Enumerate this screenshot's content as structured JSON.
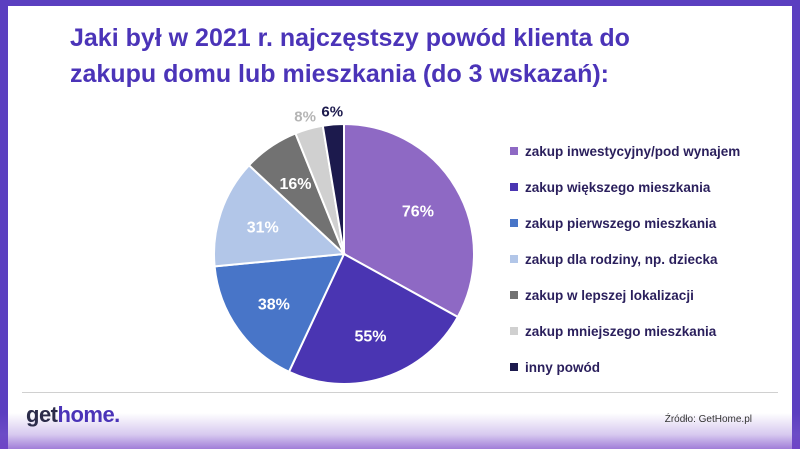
{
  "colors": {
    "accent": "#4b34b8",
    "frame": "#5b3fc0"
  },
  "header": {
    "title_line1": "Jaki był w 2021 r. najczęstszy powód klienta do",
    "title_line2": "zakupu domu lub mieszkania (do 3 wskazań):"
  },
  "chart_data": {
    "type": "pie",
    "title": "Jaki był w 2021 r. najczęstszy powód klienta do zakupu domu lub mieszkania (do 3 wskazań):",
    "legend_position": "right",
    "categories": [
      "zakup inwestycyjny/pod wynajem",
      "zakup większego mieszkania",
      "zakup pierwszego mieszkania",
      "zakup dla rodziny, np. dziecka",
      "zakup w lepszej lokalizacji",
      "zakup mniejszego mieszkania",
      "inny powód"
    ],
    "values": [
      76,
      55,
      38,
      31,
      16,
      8,
      6
    ],
    "labels": [
      "76%",
      "55%",
      "38%",
      "31%",
      "16%",
      "8%",
      "6%"
    ],
    "colors": [
      "#8e69c4",
      "#4a35b2",
      "#4875c8",
      "#b2c6e8",
      "#727272",
      "#d0d0d0",
      "#1c1a4d"
    ]
  },
  "footer": {
    "logo_get": "get",
    "logo_home": "home.",
    "source": "Źródło: GetHome.pl"
  }
}
